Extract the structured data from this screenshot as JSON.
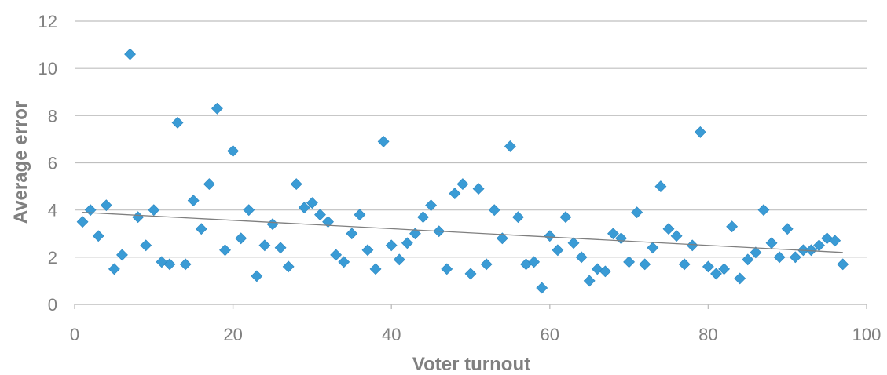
{
  "chart_data": {
    "type": "scatter",
    "xlabel": "Voter turnout",
    "ylabel": "Average error",
    "xlim": [
      0,
      100
    ],
    "ylim": [
      0,
      12
    ],
    "x_ticks": [
      0,
      20,
      40,
      60,
      80,
      100
    ],
    "y_ticks": [
      0,
      2,
      4,
      6,
      8,
      10,
      12
    ],
    "grid": "horizontal",
    "legend": "none",
    "marker_color": "#3A9BD5",
    "trendline": {
      "type": "linear",
      "x": [
        1,
        97
      ],
      "y": [
        3.9,
        2.2
      ],
      "color": "#7f7f7f"
    },
    "series": [
      {
        "x": [
          1,
          2,
          3,
          4,
          5,
          6,
          7,
          8,
          9,
          10,
          11,
          12,
          13,
          14,
          15,
          16,
          17,
          18,
          19,
          20,
          21,
          22,
          23,
          24,
          25,
          26,
          27,
          28,
          29,
          30,
          31,
          32,
          33,
          34,
          35,
          36,
          37,
          38,
          39,
          40,
          41,
          42,
          43,
          44,
          45,
          46,
          47,
          48,
          49,
          50,
          51,
          52,
          53,
          54,
          55,
          56,
          57,
          58,
          59,
          60,
          61,
          62,
          63,
          64,
          65,
          66,
          67,
          68,
          69,
          70,
          71,
          72,
          73,
          74,
          75,
          76,
          77,
          78,
          79,
          80,
          81,
          82,
          83,
          84,
          85,
          86,
          87,
          88,
          89,
          90,
          91,
          92,
          93,
          94,
          95,
          96,
          97
        ],
        "y": [
          3.5,
          4.0,
          2.9,
          4.2,
          1.5,
          2.1,
          10.6,
          3.7,
          2.5,
          4.0,
          1.8,
          1.7,
          7.7,
          1.7,
          4.4,
          3.2,
          5.1,
          8.3,
          2.3,
          6.5,
          2.8,
          4.0,
          1.2,
          2.5,
          3.4,
          2.4,
          1.6,
          5.1,
          4.1,
          4.3,
          3.8,
          3.5,
          2.1,
          1.8,
          3.0,
          3.8,
          2.3,
          1.5,
          6.9,
          2.5,
          1.9,
          2.6,
          3.0,
          3.7,
          4.2,
          3.1,
          1.5,
          4.7,
          5.1,
          1.3,
          4.9,
          1.7,
          4.0,
          2.8,
          6.7,
          3.7,
          1.7,
          1.8,
          0.7,
          2.9,
          2.3,
          3.7,
          2.6,
          2.0,
          1.0,
          1.5,
          1.4,
          3.0,
          2.8,
          1.8,
          3.9,
          1.7,
          2.4,
          5.0,
          3.2,
          2.9,
          1.7,
          2.5,
          7.3,
          1.6,
          1.3,
          1.5,
          3.3,
          1.1,
          1.9,
          2.2,
          4.0,
          2.6,
          2.0,
          3.2,
          2.0,
          2.3,
          2.3,
          2.5,
          2.8,
          2.7,
          1.7
        ]
      }
    ]
  }
}
